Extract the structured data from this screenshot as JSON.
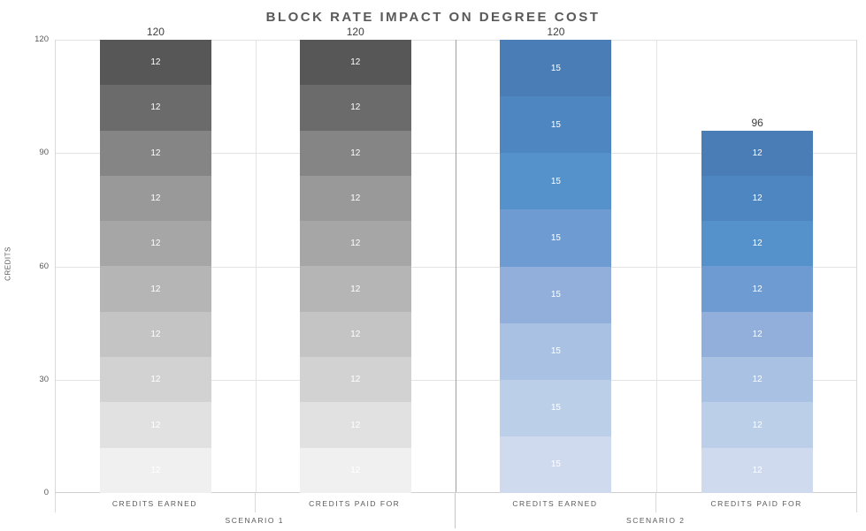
{
  "chart_data": {
    "type": "bar",
    "variant": "stacked-column",
    "title": "BLOCK RATE IMPACT ON DEGREE COST",
    "ylabel": "CREDITS",
    "ylim": [
      0,
      120
    ],
    "yticks": [
      0,
      30,
      60,
      90,
      120
    ],
    "grid": true,
    "legend": false,
    "groups": [
      {
        "label": "SCENARIO 1",
        "bars": [
          {
            "category": "CREDITS EARNED",
            "total": 120,
            "total_label": "120",
            "palette": "gray",
            "segments_top_to_bottom": [
              12,
              12,
              12,
              12,
              12,
              12,
              12,
              12,
              12,
              12
            ]
          },
          {
            "category": "CREDITS PAID FOR",
            "total": 120,
            "total_label": "120",
            "palette": "gray",
            "segments_top_to_bottom": [
              12,
              12,
              12,
              12,
              12,
              12,
              12,
              12,
              12,
              12
            ]
          }
        ]
      },
      {
        "label": "SCENARIO 2",
        "bars": [
          {
            "category": "CREDITS EARNED",
            "total": 120,
            "total_label": "120",
            "palette": "blue",
            "segments_top_to_bottom": [
              15,
              15,
              15,
              15,
              15,
              15,
              15,
              15
            ]
          },
          {
            "category": "CREDITS PAID FOR",
            "total": 96,
            "total_label": "96",
            "palette": "blue",
            "segments_top_to_bottom": [
              12,
              12,
              12,
              12,
              12,
              12,
              12,
              12
            ]
          }
        ]
      }
    ],
    "palettes_top_to_bottom": {
      "gray": [
        "#575757",
        "#6b6b6b",
        "#858585",
        "#999999",
        "#a6a6a6",
        "#b5b5b5",
        "#c4c4c4",
        "#d2d2d2",
        "#e1e1e1",
        "#f0f0f0"
      ],
      "blue": [
        "#4a7cb5",
        "#4e86c1",
        "#5591cb",
        "#6f9bd3",
        "#92afdb",
        "#a9c1e3",
        "#bccfe9",
        "#cfdaef"
      ]
    },
    "colors": {
      "title_text": "#595959",
      "axis_text": "#595959",
      "value_label_text": "#3d3d3d",
      "segment_label_text": "#ffffff",
      "gridline": "#e3e3e3",
      "axis_line": "#cfcfcf",
      "scenario_divider": "#9f9f9f"
    }
  }
}
